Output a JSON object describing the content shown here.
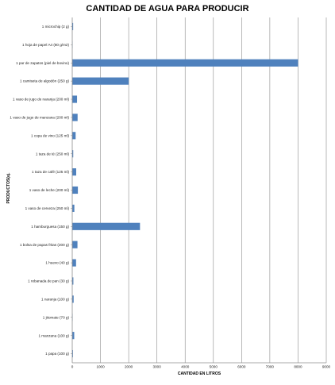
{
  "chart_data": {
    "type": "bar",
    "orientation": "horizontal",
    "title": "CANTIDAD DE AGUA PARA PRODUCIR",
    "xlabel": "CANTIDAD  EN LITROS",
    "ylabel": "PRODUCTOS(ej.",
    "xlim": [
      0,
      9000
    ],
    "x_ticks": [
      "0",
      "1000",
      "2000",
      "3000",
      "4000",
      "5000",
      "6000",
      "7000",
      "8000",
      "9000"
    ],
    "grid": true,
    "bar_color": "#4f81bd",
    "categories": [
      "1 microchip (2 g)",
      "1 hoja de papel A4 (80 g/m2)",
      "1 par de zapatos (piel de bovino)",
      "1 camiseta de algodón (250 g)",
      "1 vaso de jugo de naranja (200 ml)",
      "1 vaso de jugo de manzana (200 ml)",
      "1 copa de vino (125 ml)",
      "1 taza de té (250 ml)",
      "1 taza de café (125 ml)",
      "1 vaso de leche (200 ml)",
      "1 vaso de cerveza (250 ml)",
      "1 hamburguesa (150 g)",
      "1 bolsa de papas fritas (200 g)",
      "1 huevo (40 g)",
      "1 rebanada de pan (30 g)",
      "1 naranja (100 g)",
      "1 jitomate (70 g)",
      "1 manzana (100 g)",
      "1 papa (100 g)"
    ],
    "values": [
      32,
      10,
      8000,
      2000,
      170,
      190,
      120,
      35,
      140,
      200,
      75,
      2400,
      185,
      135,
      40,
      50,
      13,
      70,
      25
    ]
  }
}
